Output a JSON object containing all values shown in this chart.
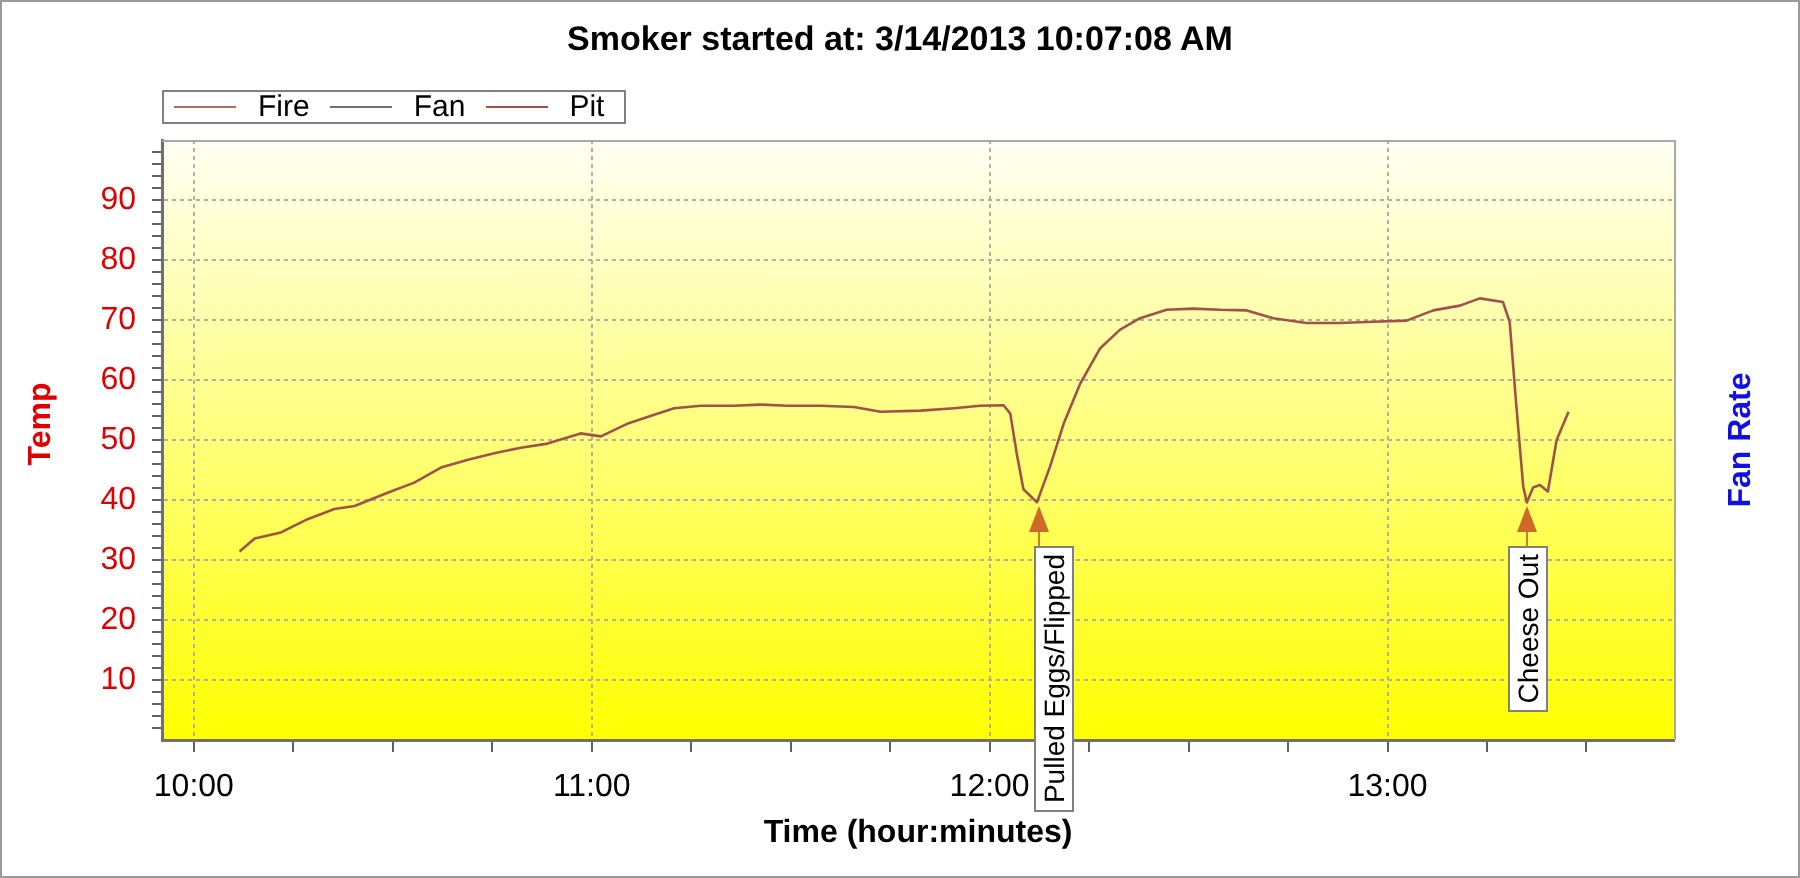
{
  "chart_data": {
    "type": "line",
    "title": "Smoker started at: 3/14/2013 10:07:08 AM",
    "xlabel": "Time (hour:minutes)",
    "ylabel": "Temp",
    "y2label": "Fan Rate",
    "x": [
      10.115,
      10.153,
      10.219,
      10.286,
      10.353,
      10.404,
      10.487,
      10.554,
      10.621,
      10.689,
      10.755,
      10.822,
      10.889,
      10.972,
      11.023,
      11.089,
      11.157,
      11.207,
      11.274,
      11.357,
      11.424,
      11.491,
      11.575,
      11.659,
      11.726,
      11.827,
      11.911,
      11.976,
      12.035,
      12.052,
      12.068,
      12.085,
      12.119,
      12.152,
      12.186,
      12.227,
      12.278,
      12.328,
      12.378,
      12.445,
      12.512,
      12.579,
      12.646,
      12.713,
      12.796,
      12.88,
      12.964,
      13.048,
      13.115,
      13.182,
      13.232,
      13.29,
      13.307,
      13.324,
      13.341,
      13.35,
      13.366,
      13.383,
      13.403,
      13.425,
      13.455
    ],
    "series": [
      {
        "name": "Fire",
        "color": "#b06a60",
        "values": [
          null,
          null,
          null,
          null,
          null,
          null,
          null,
          null,
          null,
          null,
          null,
          null,
          null,
          null,
          null,
          null,
          null,
          null,
          null,
          null,
          null,
          null,
          null,
          null,
          null,
          null,
          null,
          null,
          null,
          null,
          null,
          null,
          null,
          null,
          null,
          null,
          null,
          null,
          null,
          null,
          null,
          null,
          null,
          null,
          null,
          null,
          null,
          null,
          null,
          null,
          null,
          null,
          null,
          null,
          null,
          null,
          null,
          null,
          null,
          null,
          null
        ]
      },
      {
        "name": "Fan",
        "color": "#707070",
        "values": [
          null,
          null,
          null,
          null,
          null,
          null,
          null,
          null,
          null,
          null,
          null,
          null,
          null,
          null,
          null,
          null,
          null,
          null,
          null,
          null,
          null,
          null,
          null,
          null,
          null,
          null,
          null,
          null,
          null,
          null,
          null,
          null,
          null,
          null,
          null,
          null,
          null,
          null,
          null,
          null,
          null,
          null,
          null,
          null,
          null,
          null,
          null,
          null,
          null,
          null,
          null,
          null,
          null,
          null,
          null,
          null,
          null,
          null,
          null,
          null,
          null
        ]
      },
      {
        "name": "Pit",
        "color": "#a0524a",
        "values": [
          31.4,
          33.6,
          34.6,
          36.8,
          38.5,
          39.0,
          41.2,
          42.9,
          45.4,
          46.7,
          47.8,
          48.7,
          49.4,
          51.1,
          50.6,
          52.7,
          54.2,
          55.3,
          55.7,
          55.7,
          55.9,
          55.7,
          55.7,
          55.5,
          54.7,
          54.9,
          55.3,
          55.7,
          55.8,
          54.4,
          47.8,
          41.8,
          39.6,
          45.6,
          52.7,
          59.3,
          65.3,
          68.4,
          70.3,
          71.7,
          71.9,
          71.7,
          71.6,
          70.3,
          69.5,
          69.5,
          69.7,
          69.9,
          71.6,
          72.4,
          73.6,
          73.0,
          69.7,
          55.5,
          42.3,
          39.6,
          42.1,
          42.5,
          41.4,
          50.0,
          54.7
        ]
      }
    ],
    "xlim": [
      9.92,
      13.72
    ],
    "xticks": [
      {
        "value": 10,
        "label": "10:00"
      },
      {
        "value": 10.25,
        "label": null
      },
      {
        "value": 10.5,
        "label": null
      },
      {
        "value": 10.75,
        "label": null
      },
      {
        "value": 11,
        "label": "11:00"
      },
      {
        "value": 11.25,
        "label": null
      },
      {
        "value": 11.5,
        "label": null
      },
      {
        "value": 11.75,
        "label": null
      },
      {
        "value": 12,
        "label": "12:00"
      },
      {
        "value": 12.25,
        "label": null
      },
      {
        "value": 12.5,
        "label": null
      },
      {
        "value": 12.75,
        "label": null
      },
      {
        "value": 13,
        "label": "13:00"
      },
      {
        "value": 13.25,
        "label": null
      },
      {
        "value": 13.5,
        "label": null
      }
    ],
    "ylim": [
      0,
      100
    ],
    "yticks": [
      {
        "value": 2,
        "label": null
      },
      {
        "value": 4,
        "label": null
      },
      {
        "value": 6,
        "label": null
      },
      {
        "value": 8,
        "label": null
      },
      10,
      {
        "value": 12,
        "label": null
      },
      {
        "value": 14,
        "label": null
      },
      {
        "value": 16,
        "label": null
      },
      {
        "value": 18,
        "label": null
      },
      20,
      {
        "value": 22,
        "label": null
      },
      {
        "value": 24,
        "label": null
      },
      {
        "value": 26,
        "label": null
      },
      {
        "value": 28,
        "label": null
      },
      30,
      {
        "value": 32,
        "label": null
      },
      {
        "value": 34,
        "label": null
      },
      {
        "value": 36,
        "label": null
      },
      {
        "value": 38,
        "label": null
      },
      40,
      {
        "value": 42,
        "label": null
      },
      {
        "value": 44,
        "label": null
      },
      {
        "value": 46,
        "label": null
      },
      {
        "value": 48,
        "label": null
      },
      50,
      {
        "value": 52,
        "label": null
      },
      {
        "value": 54,
        "label": null
      },
      {
        "value": 56,
        "label": null
      },
      {
        "value": 58,
        "label": null
      },
      60,
      {
        "value": 62,
        "label": null
      },
      {
        "value": 64,
        "label": null
      },
      {
        "value": 66,
        "label": null
      },
      {
        "value": 68,
        "label": null
      },
      70,
      {
        "value": 72,
        "label": null
      },
      {
        "value": 74,
        "label": null
      },
      {
        "value": 76,
        "label": null
      },
      {
        "value": 78,
        "label": null
      },
      80,
      {
        "value": 82,
        "label": null
      },
      {
        "value": 84,
        "label": null
      },
      {
        "value": 86,
        "label": null
      },
      {
        "value": 88,
        "label": null
      },
      90,
      {
        "value": 92,
        "label": null
      },
      {
        "value": 94,
        "label": null
      },
      {
        "value": 96,
        "label": null
      },
      {
        "value": 98,
        "label": null
      }
    ],
    "grid": true,
    "legend": "top left",
    "annotations": [
      {
        "text": "Pulled Eggs/Flipped",
        "x": 12.12,
        "y": 39
      },
      {
        "text": "Cheese Out",
        "x": 13.35,
        "y": 39
      }
    ]
  }
}
